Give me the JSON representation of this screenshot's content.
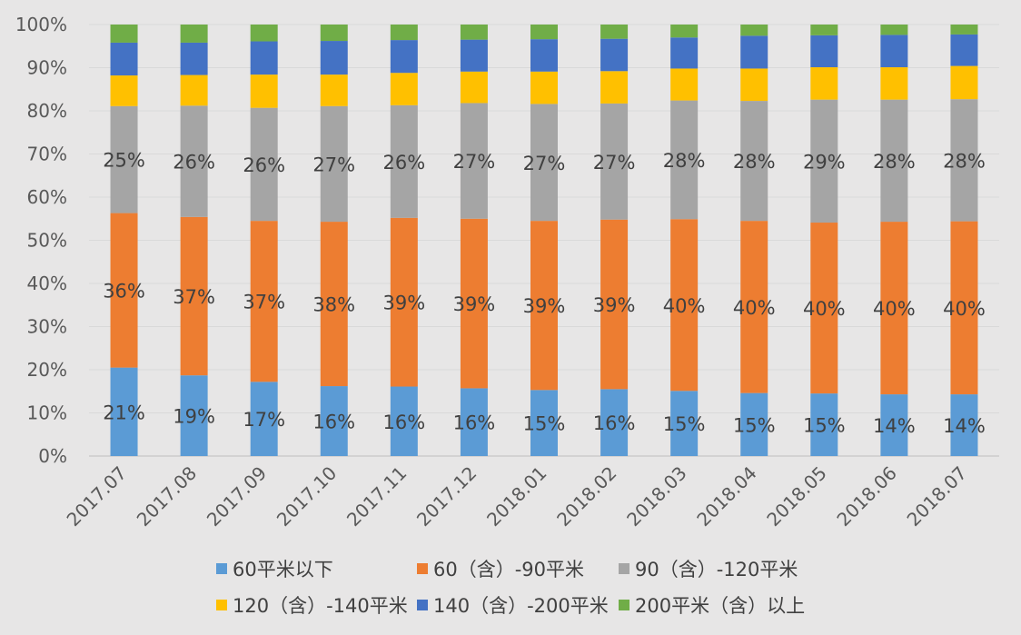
{
  "chart_data": {
    "type": "bar",
    "stacked": true,
    "percent_stacked": true,
    "categories": [
      "2017.07",
      "2017.08",
      "2017.09",
      "2017.10",
      "2017.11",
      "2017.12",
      "2018.01",
      "2018.02",
      "2018.03",
      "2018.04",
      "2018.05",
      "2018.06",
      "2018.07"
    ],
    "ylim": [
      0,
      100
    ],
    "yticks": [
      "0%",
      "10%",
      "20%",
      "30%",
      "40%",
      "50%",
      "60%",
      "70%",
      "80%",
      "90%",
      "100%"
    ],
    "grid": true,
    "legend_position": "bottom",
    "series": [
      {
        "name": "60平米以下",
        "color": "#5b9bd5",
        "values": [
          20.5,
          18.7,
          17.2,
          16.2,
          16.1,
          15.7,
          15.3,
          15.5,
          15.1,
          14.6,
          14.5,
          14.3,
          14.3
        ],
        "labels": [
          "21%",
          "19%",
          "17%",
          "16%",
          "16%",
          "16%",
          "15%",
          "16%",
          "15%",
          "15%",
          "15%",
          "14%",
          "14%"
        ]
      },
      {
        "name": "60（含）-90平米",
        "color": "#ed7d31",
        "values": [
          35.8,
          36.7,
          37.3,
          38.1,
          39.1,
          39.3,
          39.2,
          39.3,
          39.8,
          39.9,
          39.6,
          40.0,
          40.1
        ],
        "labels": [
          "36%",
          "37%",
          "37%",
          "38%",
          "39%",
          "39%",
          "39%",
          "39%",
          "40%",
          "40%",
          "40%",
          "40%",
          "40%"
        ]
      },
      {
        "name": "90（含）-120平米",
        "color": "#a5a5a5",
        "values": [
          24.8,
          25.8,
          26.2,
          26.8,
          26.1,
          26.8,
          27.1,
          26.9,
          27.5,
          27.8,
          28.5,
          28.3,
          28.3
        ],
        "labels": [
          "25%",
          "26%",
          "26%",
          "27%",
          "26%",
          "27%",
          "27%",
          "27%",
          "28%",
          "28%",
          "29%",
          "28%",
          "28%"
        ]
      },
      {
        "name": "120（含）-140平米",
        "color": "#ffc000",
        "values": [
          7.1,
          7.1,
          7.7,
          7.3,
          7.5,
          7.3,
          7.5,
          7.5,
          7.4,
          7.5,
          7.5,
          7.5,
          7.7
        ],
        "labels": [
          "",
          "",
          "",
          "",
          "",
          "",
          "",
          "",
          "",
          "",
          "",
          "",
          ""
        ]
      },
      {
        "name": "140（含）-200平米",
        "color": "#4472c4",
        "values": [
          7.6,
          7.5,
          7.7,
          7.8,
          7.6,
          7.4,
          7.5,
          7.5,
          7.2,
          7.6,
          7.4,
          7.5,
          7.3
        ],
        "labels": [
          "",
          "",
          "",
          "",
          "",
          "",
          "",
          "",
          "",
          "",
          "",
          "",
          ""
        ]
      },
      {
        "name": "200平米（含）以上",
        "color": "#70ad47",
        "values": [
          4.2,
          4.2,
          3.9,
          3.8,
          3.6,
          3.5,
          3.4,
          3.3,
          3.0,
          2.6,
          2.5,
          2.4,
          2.3
        ],
        "labels": [
          "",
          "",
          "",
          "",
          "",
          "",
          "",
          "",
          "",
          "",
          "",
          "",
          ""
        ]
      }
    ]
  }
}
